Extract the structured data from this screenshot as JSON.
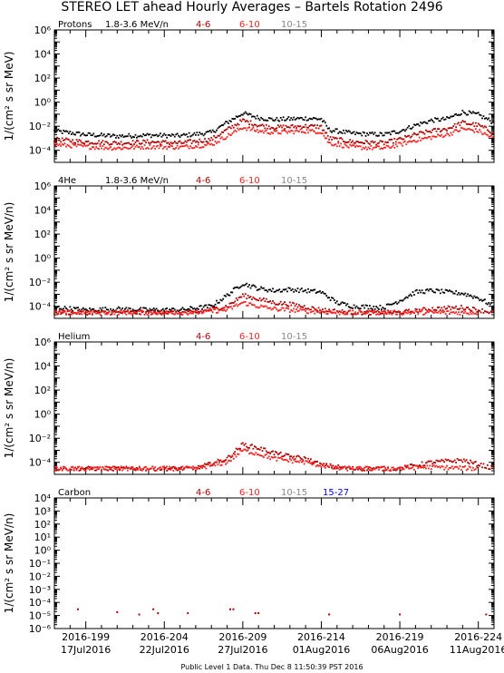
{
  "title": "STEREO LET ahead Hourly Averages – Bartels Rotation 2496",
  "footer": "Public Level 1 Data. Thu Dec  8 11:50:39 PST 2016",
  "ylabel": "1/(cm² s sr MeV/n)",
  "x_ticks": [
    {
      "doy": "2016-199",
      "date": "17Jul2016"
    },
    {
      "doy": "2016-204",
      "date": "22Jul2016"
    },
    {
      "doy": "2016-209",
      "date": "27Jul2016"
    },
    {
      "doy": "2016-214",
      "date": "01Aug2016"
    },
    {
      "doy": "2016-219",
      "date": "06Aug2016"
    },
    {
      "doy": "2016-224",
      "date": "11Aug2016"
    }
  ],
  "colors": {
    "4-6": "#b30000",
    "6-10": "#ff2020",
    "10-15": "#888888",
    "15-27": "#0000ff",
    "base": "#000000"
  },
  "chart_data": [
    {
      "type": "scatter",
      "species": "Protons",
      "energy_label": "1.8-3.6 MeV/n",
      "ylabel": "1/(cm² s sr MeV)",
      "log_y": true,
      "ylim": [
        1e-05,
        1000000
      ],
      "xlim": [
        "2016-197",
        "2016-225"
      ],
      "legend": [
        "4-6",
        "6-10",
        "10-15"
      ],
      "series": [
        {
          "name": "1.8-3.6 MeV/n",
          "color": "#000000",
          "points": [
            [
              197,
              0.004
            ],
            [
              199,
              0.002
            ],
            [
              201,
              0.0015
            ],
            [
              203,
              0.0018
            ],
            [
              205,
              0.0016
            ],
            [
              207,
              0.003
            ],
            [
              208,
              0.02
            ],
            [
              209,
              0.12
            ],
            [
              210,
              0.05
            ],
            [
              211,
              0.035
            ],
            [
              212,
              0.04
            ],
            [
              213,
              0.045
            ],
            [
              214,
              0.04
            ],
            [
              214.5,
              0.005
            ],
            [
              216,
              0.0025
            ],
            [
              218,
              0.002
            ],
            [
              219,
              0.004
            ],
            [
              220,
              0.012
            ],
            [
              221,
              0.03
            ],
            [
              222,
              0.04
            ],
            [
              223,
              0.15
            ],
            [
              224,
              0.09
            ],
            [
              225,
              0.02
            ]
          ]
        },
        {
          "name": "4-6",
          "color": "#b30000",
          "points": [
            [
              197,
              0.0008
            ],
            [
              199,
              0.0005
            ],
            [
              201,
              0.0004
            ],
            [
              203,
              0.0005
            ],
            [
              205,
              0.0004
            ],
            [
              207,
              0.0008
            ],
            [
              208,
              0.005
            ],
            [
              209,
              0.03
            ],
            [
              210,
              0.012
            ],
            [
              211,
              0.008
            ],
            [
              212,
              0.009
            ],
            [
              213,
              0.01
            ],
            [
              214,
              0.009
            ],
            [
              214.5,
              0.001
            ],
            [
              216,
              0.0005
            ],
            [
              218,
              0.0004
            ],
            [
              219,
              0.0008
            ],
            [
              220,
              0.002
            ],
            [
              221,
              0.004
            ],
            [
              222,
              0.006
            ],
            [
              223,
              0.02
            ],
            [
              224,
              0.012
            ],
            [
              225,
              0.003
            ]
          ]
        },
        {
          "name": "6-10",
          "color": "#ff2020",
          "points": [
            [
              197,
              0.0003
            ],
            [
              199,
              0.0002
            ],
            [
              201,
              0.00015
            ],
            [
              203,
              0.0002
            ],
            [
              205,
              0.00018
            ],
            [
              207,
              0.0003
            ],
            [
              208,
              0.0015
            ],
            [
              209,
              0.008
            ],
            [
              210,
              0.004
            ],
            [
              211,
              0.003
            ],
            [
              212,
              0.0035
            ],
            [
              213,
              0.004
            ],
            [
              214,
              0.0035
            ],
            [
              214.5,
              0.0004
            ],
            [
              216,
              0.00018
            ],
            [
              218,
              0.00015
            ],
            [
              219,
              0.0003
            ],
            [
              220,
              0.0007
            ],
            [
              221,
              0.0012
            ],
            [
              222,
              0.002
            ],
            [
              223,
              0.006
            ],
            [
              224,
              0.004
            ],
            [
              225,
              0.001
            ]
          ]
        }
      ]
    },
    {
      "type": "scatter",
      "species": "4He",
      "energy_label": "1.8-3.6 MeV/n",
      "ylabel": "1/(cm² s sr MeV/n)",
      "log_y": true,
      "ylim": [
        1e-05,
        1000000
      ],
      "xlim": [
        "2016-197",
        "2016-225"
      ],
      "legend": [
        "4-6",
        "6-10",
        "10-15"
      ],
      "series": [
        {
          "name": "1.8-3.6 MeV/n",
          "color": "#000000",
          "points": [
            [
              197,
              8e-05
            ],
            [
              199,
              5e-05
            ],
            [
              201,
              6e-05
            ],
            [
              203,
              5e-05
            ],
            [
              205,
              5e-05
            ],
            [
              207,
              0.0001
            ],
            [
              208,
              0.0008
            ],
            [
              209,
              0.008
            ],
            [
              210,
              0.003
            ],
            [
              211,
              0.002
            ],
            [
              212,
              0.0025
            ],
            [
              213,
              0.002
            ],
            [
              214,
              0.0015
            ],
            [
              215,
              0.0002
            ],
            [
              216,
              0.0001
            ],
            [
              218,
              8e-05
            ],
            [
              219,
              0.0003
            ],
            [
              220,
              0.0015
            ],
            [
              221,
              0.002
            ],
            [
              222,
              0.0015
            ],
            [
              223,
              0.0012
            ],
            [
              224,
              0.0005
            ],
            [
              225,
              0.0001
            ]
          ]
        },
        {
          "name": "4-6",
          "color": "#b30000",
          "points": [
            [
              197,
              3e-05
            ],
            [
              200,
              3e-05
            ],
            [
              203,
              3e-05
            ],
            [
              206,
              3e-05
            ],
            [
              208,
              0.0001
            ],
            [
              209,
              0.0008
            ],
            [
              210,
              0.0004
            ],
            [
              211,
              0.0002
            ],
            [
              212,
              0.00015
            ],
            [
              214,
              5e-05
            ],
            [
              216,
              3e-05
            ],
            [
              219,
              3e-05
            ],
            [
              221,
              6e-05
            ],
            [
              223,
              8e-05
            ],
            [
              225,
              3e-05
            ]
          ]
        },
        {
          "name": "6-10",
          "color": "#ff2020",
          "points": [
            [
              197,
              3e-05
            ],
            [
              200,
              3e-05
            ],
            [
              203,
              3e-05
            ],
            [
              206,
              3e-05
            ],
            [
              208,
              5e-05
            ],
            [
              209,
              0.0002
            ],
            [
              210,
              0.0001
            ],
            [
              211,
              6e-05
            ],
            [
              213,
              4e-05
            ],
            [
              215,
              3e-05
            ],
            [
              218,
              3e-05
            ],
            [
              221,
              3e-05
            ],
            [
              224,
              3e-05
            ]
          ]
        }
      ]
    },
    {
      "type": "scatter",
      "species": "Helium",
      "energy_label": "",
      "ylabel": "1/(cm² s sr MeV/n)",
      "log_y": true,
      "ylim": [
        1e-05,
        1000000
      ],
      "xlim": [
        "2016-197",
        "2016-225"
      ],
      "legend": [
        "4-6",
        "6-10",
        "10-15"
      ],
      "series": [
        {
          "name": "4-6",
          "color": "#b30000",
          "points": [
            [
              197,
              3e-05
            ],
            [
              200,
              3e-05
            ],
            [
              203,
              3e-05
            ],
            [
              206,
              3e-05
            ],
            [
              208,
              0.0002
            ],
            [
              209,
              0.003
            ],
            [
              210,
              0.0015
            ],
            [
              211,
              0.0006
            ],
            [
              212,
              0.0003
            ],
            [
              213,
              0.0002
            ],
            [
              214,
              6e-05
            ],
            [
              216,
              3e-05
            ],
            [
              219,
              3e-05
            ],
            [
              221,
              0.0001
            ],
            [
              223,
              0.00015
            ],
            [
              225,
              3e-05
            ]
          ]
        },
        {
          "name": "6-10",
          "color": "#ff2020",
          "points": [
            [
              197,
              3e-05
            ],
            [
              200,
              3e-05
            ],
            [
              203,
              3e-05
            ],
            [
              206,
              3e-05
            ],
            [
              208,
              0.0001
            ],
            [
              209,
              0.001
            ],
            [
              210,
              0.0005
            ],
            [
              211,
              0.0002
            ],
            [
              213,
              0.0001
            ],
            [
              215,
              3e-05
            ],
            [
              218,
              3e-05
            ],
            [
              221,
              4e-05
            ],
            [
              224,
              3e-05
            ]
          ]
        }
      ]
    },
    {
      "type": "scatter",
      "species": "Carbon",
      "energy_label": "",
      "ylabel": "1/(cm² s sr MeV/n)",
      "log_y": true,
      "ylim": [
        1e-06,
        10000
      ],
      "xlim": [
        "2016-197",
        "2016-225"
      ],
      "legend": [
        "4-6",
        "6-10",
        "10-15",
        "15-27"
      ],
      "series": [
        {
          "name": "4-6",
          "color": "#b30000",
          "points": [
            [
              198.5,
              3e-05
            ],
            [
              201,
              1.8e-05
            ],
            [
              202.4,
              1.2e-05
            ],
            [
              203.3,
              3e-05
            ],
            [
              203.6,
              1.5e-05
            ],
            [
              205.5,
              1.5e-05
            ],
            [
              208.2,
              3e-05
            ],
            [
              208.4,
              3e-05
            ],
            [
              209.8,
              1.5e-05
            ],
            [
              210,
              1.5e-05
            ],
            [
              214.5,
              1.2e-05
            ],
            [
              219,
              1.2e-05
            ],
            [
              224.5,
              1.2e-05
            ]
          ]
        }
      ]
    }
  ]
}
